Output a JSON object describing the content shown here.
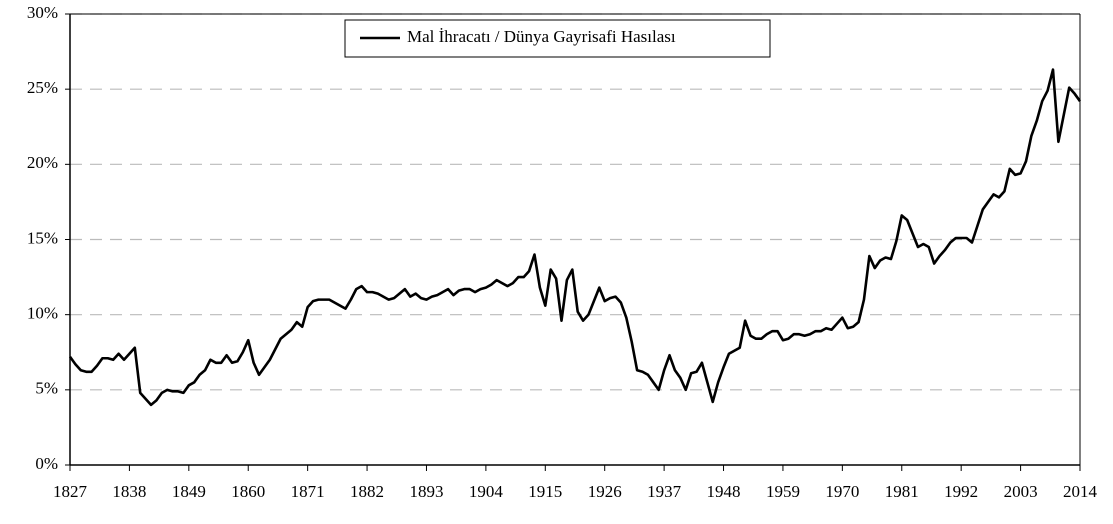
{
  "chart_data": {
    "type": "line",
    "x": [
      1827,
      1828,
      1829,
      1830,
      1831,
      1832,
      1833,
      1834,
      1835,
      1836,
      1837,
      1838,
      1839,
      1840,
      1841,
      1842,
      1843,
      1844,
      1845,
      1846,
      1847,
      1848,
      1849,
      1850,
      1851,
      1852,
      1853,
      1854,
      1855,
      1856,
      1857,
      1858,
      1859,
      1860,
      1861,
      1862,
      1863,
      1864,
      1865,
      1866,
      1867,
      1868,
      1869,
      1870,
      1871,
      1872,
      1873,
      1874,
      1875,
      1876,
      1877,
      1878,
      1879,
      1880,
      1881,
      1882,
      1883,
      1884,
      1885,
      1886,
      1887,
      1888,
      1889,
      1890,
      1891,
      1892,
      1893,
      1894,
      1895,
      1896,
      1897,
      1898,
      1899,
      1900,
      1901,
      1902,
      1903,
      1904,
      1905,
      1906,
      1907,
      1908,
      1909,
      1910,
      1911,
      1912,
      1913,
      1914,
      1915,
      1916,
      1917,
      1918,
      1919,
      1920,
      1921,
      1922,
      1923,
      1924,
      1925,
      1926,
      1927,
      1928,
      1929,
      1930,
      1931,
      1932,
      1933,
      1934,
      1935,
      1936,
      1937,
      1938,
      1939,
      1940,
      1941,
      1942,
      1943,
      1944,
      1945,
      1946,
      1947,
      1948,
      1949,
      1950,
      1951,
      1952,
      1953,
      1954,
      1955,
      1956,
      1957,
      1958,
      1959,
      1960,
      1961,
      1962,
      1963,
      1964,
      1965,
      1966,
      1967,
      1968,
      1969,
      1970,
      1971,
      1972,
      1973,
      1974,
      1975,
      1976,
      1977,
      1978,
      1979,
      1980,
      1981,
      1982,
      1983,
      1984,
      1985,
      1986,
      1987,
      1988,
      1989,
      1990,
      1991,
      1992,
      1993,
      1994,
      1995,
      1996,
      1997,
      1998,
      1999,
      2000,
      2001,
      2002,
      2003,
      2004,
      2005,
      2006,
      2007,
      2008,
      2009,
      2010,
      2011,
      2012,
      2013,
      2014
    ],
    "series": [
      {
        "name": "Mal İhracatı / Dünya Gayrisafi Hasılası",
        "color": "#000000",
        "values": [
          7.2,
          6.7,
          6.3,
          6.2,
          6.2,
          6.6,
          7.1,
          7.1,
          7.0,
          7.4,
          7.0,
          7.4,
          7.8,
          4.8,
          4.4,
          4.0,
          4.3,
          4.8,
          5.0,
          4.9,
          4.9,
          4.8,
          5.3,
          5.5,
          6.0,
          6.3,
          7.0,
          6.8,
          6.8,
          7.3,
          6.8,
          6.9,
          7.5,
          8.3,
          6.8,
          6.0,
          6.5,
          7.0,
          7.7,
          8.4,
          8.7,
          9.0,
          9.5,
          9.2,
          10.5,
          10.9,
          11.0,
          11.0,
          11.0,
          10.8,
          10.6,
          10.4,
          11.0,
          11.7,
          11.9,
          11.5,
          11.5,
          11.4,
          11.2,
          11.0,
          11.1,
          11.4,
          11.7,
          11.2,
          11.4,
          11.1,
          11.0,
          11.2,
          11.3,
          11.5,
          11.7,
          11.3,
          11.6,
          11.7,
          11.7,
          11.5,
          11.7,
          11.8,
          12.0,
          12.3,
          12.1,
          11.9,
          12.1,
          12.5,
          12.5,
          12.9,
          14.0,
          11.8,
          10.6,
          13.0,
          12.4,
          9.6,
          12.3,
          13.0,
          10.2,
          9.6,
          10.0,
          10.9,
          11.8,
          10.9,
          11.1,
          11.2,
          10.8,
          9.8,
          8.2,
          6.3,
          6.2,
          6.0,
          5.5,
          5.0,
          6.3,
          7.3,
          6.3,
          5.8,
          5.0,
          6.1,
          6.2,
          6.8,
          5.5,
          4.2,
          5.5,
          6.5,
          7.4,
          7.6,
          7.8,
          9.6,
          8.6,
          8.4,
          8.4,
          8.7,
          8.9,
          8.9,
          8.3,
          8.4,
          8.7,
          8.7,
          8.6,
          8.7,
          8.9,
          8.9,
          9.1,
          9.0,
          9.4,
          9.8,
          9.1,
          9.2,
          9.5,
          11.0,
          13.9,
          13.1,
          13.6,
          13.8,
          13.7,
          14.9,
          16.6,
          16.3,
          15.4,
          14.5,
          14.7,
          14.5,
          13.4,
          13.9,
          14.3,
          14.8,
          15.1,
          15.1,
          15.1,
          14.8,
          15.9,
          17.0,
          17.5,
          18.0,
          17.8,
          18.2,
          19.7,
          19.3,
          19.4,
          20.2,
          21.9,
          22.9,
          24.2,
          24.9,
          26.3,
          21.5,
          23.3,
          25.1,
          24.7,
          24.2
        ]
      }
    ],
    "xlim": [
      1827,
      2014
    ],
    "xticks": [
      1827,
      1838,
      1849,
      1860,
      1871,
      1882,
      1893,
      1904,
      1915,
      1926,
      1937,
      1948,
      1959,
      1970,
      1981,
      1992,
      2003,
      2014
    ],
    "ylim": [
      0,
      30
    ],
    "yticks": [
      {
        "value": 0,
        "label": "0%"
      },
      {
        "value": 5,
        "label": "5%"
      },
      {
        "value": 10,
        "label": "10%"
      },
      {
        "value": 15,
        "label": "15%"
      },
      {
        "value": 20,
        "label": "20%"
      },
      {
        "value": 25,
        "label": "25%"
      },
      {
        "value": 30,
        "label": "30%"
      }
    ],
    "grid": true,
    "legend": "top"
  }
}
